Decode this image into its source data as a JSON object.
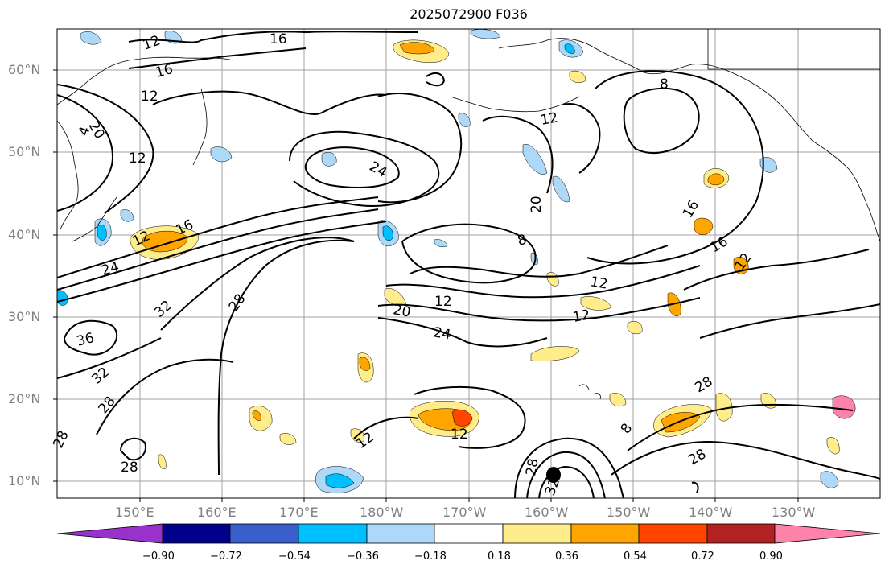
{
  "title": "2025072900 F036",
  "lat_labels": [
    "60°N",
    "50°N",
    "40°N",
    "30°N",
    "20°N",
    "10°N"
  ],
  "lon_labels": [
    "150°E",
    "160°E",
    "170°E",
    "180°W",
    "170°W",
    "160°W",
    "150°W",
    "140°W",
    "130°W"
  ],
  "contour_labels": [
    "16",
    "12",
    "16",
    "12",
    "20",
    "4",
    "12",
    "24",
    "12",
    "16",
    "24",
    "36",
    "32",
    "28",
    "32",
    "28",
    "28",
    "28",
    "12",
    "20",
    "24",
    "12",
    "12",
    "8",
    "12",
    "16",
    "12",
    "20",
    "12",
    "8",
    "12",
    "8",
    "28",
    "16",
    "28",
    "32",
    "28"
  ],
  "colorbar": {
    "ticks": [
      "−0.90",
      "−0.72",
      "−0.54",
      "−0.36",
      "−0.18",
      "0.18",
      "0.36",
      "0.54",
      "0.72",
      "0.90"
    ],
    "colors": [
      "#9932cc",
      "#00008b",
      "#3a5fcd",
      "#00bfff",
      "#add8f8",
      "#ffffff",
      "#ffec8b",
      "#ffa500",
      "#ff4500",
      "#b22222",
      "#ff82ab"
    ]
  }
}
